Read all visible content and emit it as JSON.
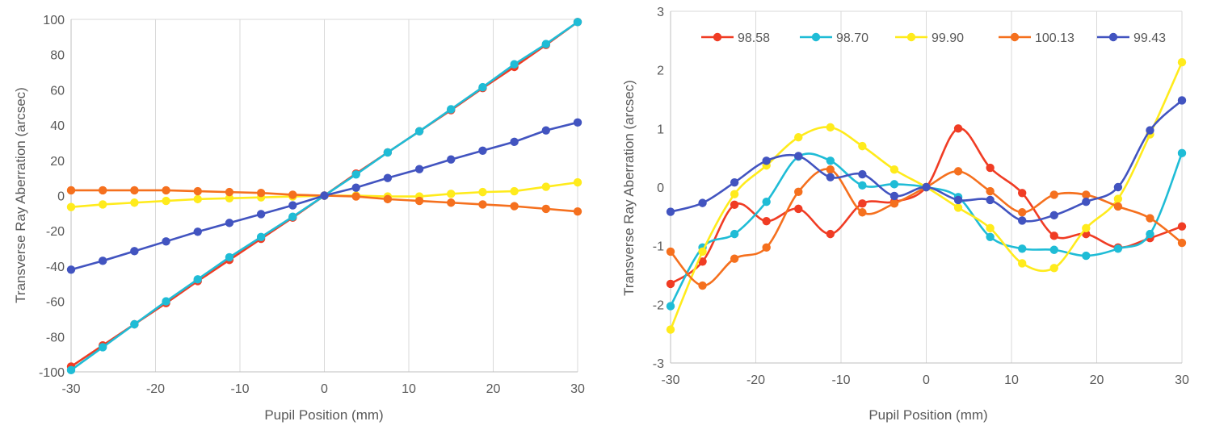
{
  "colors": {
    "red": "#f03c24",
    "cyan": "#1fbcd6",
    "yellow": "#ffeb1c",
    "orange": "#f5701e",
    "blue": "#4254c0",
    "grid": "#d9d9d9",
    "axis": "#bfbfbf",
    "text": "#595959"
  },
  "chart_data": [
    {
      "type": "line",
      "smooth": false,
      "xlabel": "Pupil Position (mm)",
      "ylabel": "Transverse Ray Aberration (arcsec)",
      "xlim": [
        -30,
        30
      ],
      "ylim": [
        -100,
        100
      ],
      "x_ticks": [
        -30,
        -20,
        -10,
        0,
        10,
        20,
        30
      ],
      "y_ticks": [
        -100,
        -80,
        -60,
        -40,
        -20,
        0,
        20,
        40,
        60,
        80,
        100
      ],
      "grid": "vertical",
      "x": [
        -30,
        -26.25,
        -22.5,
        -18.75,
        -15,
        -11.25,
        -7.5,
        -3.75,
        0,
        3.75,
        7.5,
        11.25,
        15,
        18.75,
        22.5,
        26.25,
        30
      ],
      "series": [
        {
          "name": "98.58",
          "color": "#f03c24",
          "values": [
            -97,
            -85,
            -73,
            -61,
            -48.5,
            -36.5,
            -24.5,
            -12.5,
            0,
            12.5,
            24.5,
            36.5,
            48.5,
            61,
            73,
            85.5,
            98.5
          ]
        },
        {
          "name": "98.70",
          "color": "#1fbcd6",
          "values": [
            -99,
            -86,
            -73,
            -60,
            -47.5,
            -35,
            -23.5,
            -12,
            0,
            12,
            24.5,
            36.5,
            49,
            61.5,
            74.5,
            86,
            98.5
          ]
        },
        {
          "name": "99.90",
          "color": "#ffeb1c",
          "values": [
            -6.5,
            -5,
            -4,
            -3,
            -2,
            -1.5,
            -1,
            -0.5,
            0,
            0,
            -0.5,
            -0.5,
            1,
            2,
            2.5,
            5,
            7.5
          ]
        },
        {
          "name": "100.13",
          "color": "#f5701e",
          "values": [
            3,
            3,
            3,
            3,
            2.5,
            2,
            1.5,
            0.5,
            0,
            -0.5,
            -2,
            -3,
            -4,
            -5,
            -6,
            -7.5,
            -9
          ]
        },
        {
          "name": "99.43",
          "color": "#4254c0",
          "values": [
            -42,
            -37,
            -31.5,
            -26,
            -20.5,
            -15.5,
            -10.5,
            -5.5,
            0,
            4.5,
            10,
            15,
            20.5,
            25.5,
            30.5,
            37,
            41.5
          ]
        }
      ]
    },
    {
      "type": "line",
      "smooth": true,
      "xlabel": "Pupil Position (mm)",
      "ylabel": "Transverse Ray Aberration (arcsec)",
      "xlim": [
        -30,
        30
      ],
      "ylim": [
        -3,
        3
      ],
      "x_ticks": [
        -30,
        -20,
        -10,
        0,
        10,
        20,
        30
      ],
      "y_ticks": [
        -3,
        -2,
        -1,
        0,
        1,
        2,
        3
      ],
      "grid": "vertical",
      "legend_position": "top",
      "x": [
        -30,
        -26.25,
        -22.5,
        -18.75,
        -15,
        -11.25,
        -7.5,
        -3.75,
        0,
        3.75,
        7.5,
        11.25,
        15,
        18.75,
        22.5,
        26.25,
        30
      ],
      "series": [
        {
          "name": "98.58",
          "color": "#f03c24",
          "values": [
            -1.65,
            -1.27,
            -0.3,
            -0.58,
            -0.37,
            -0.8,
            -0.28,
            -0.25,
            0,
            1.0,
            0.33,
            -0.1,
            -0.83,
            -0.8,
            -1.03,
            -0.87,
            -0.67
          ]
        },
        {
          "name": "98.70",
          "color": "#1fbcd6",
          "values": [
            -2.03,
            -1.03,
            -0.8,
            -0.25,
            0.52,
            0.45,
            0.03,
            0.05,
            0,
            -0.17,
            -0.85,
            -1.05,
            -1.07,
            -1.17,
            -1.05,
            -0.8,
            0.58
          ]
        },
        {
          "name": "99.90",
          "color": "#ffeb1c",
          "values": [
            -2.43,
            -1.1,
            -0.12,
            0.37,
            0.85,
            1.02,
            0.7,
            0.3,
            0,
            -0.35,
            -0.7,
            -1.3,
            -1.38,
            -0.7,
            -0.2,
            0.9,
            2.13
          ]
        },
        {
          "name": "100.13",
          "color": "#f5701e",
          "values": [
            -1.1,
            -1.68,
            -1.22,
            -1.03,
            -0.08,
            0.3,
            -0.43,
            -0.28,
            0,
            0.27,
            -0.07,
            -0.43,
            -0.13,
            -0.13,
            -0.33,
            -0.53,
            -0.95
          ]
        },
        {
          "name": "99.43",
          "color": "#4254c0",
          "values": [
            -0.42,
            -0.27,
            0.08,
            0.45,
            0.53,
            0.17,
            0.22,
            -0.15,
            0,
            -0.22,
            -0.22,
            -0.57,
            -0.48,
            -0.25,
            0,
            0.97,
            1.48
          ]
        }
      ]
    }
  ]
}
